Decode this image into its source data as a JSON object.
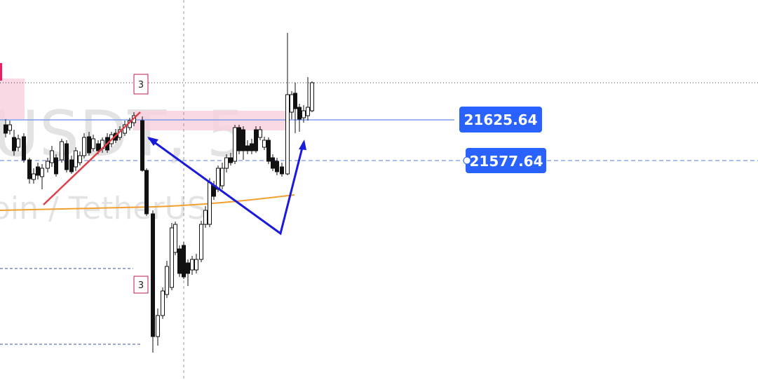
{
  "watermark": {
    "symbol": "USDT, 5",
    "description": "oin / TetherUS"
  },
  "price_labels": [
    "21625.64",
    "21577.64"
  ],
  "markers": [
    "3",
    "3"
  ]
}
